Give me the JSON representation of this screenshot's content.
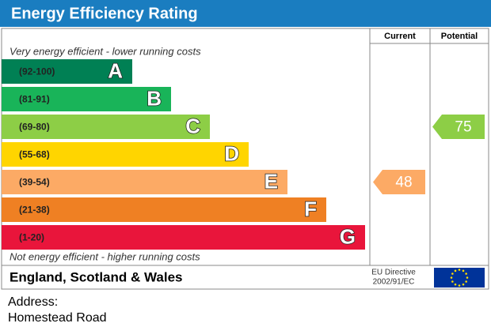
{
  "header": {
    "title": "Energy Efficiency Rating",
    "columns": [
      "Current",
      "Potential"
    ]
  },
  "top_note": "Very energy efficient - lower running costs",
  "bands": [
    {
      "range": "(92-100)",
      "letter": "A",
      "color": "#008054"
    },
    {
      "range": "(81-91)",
      "letter": "B",
      "color": "#19b459"
    },
    {
      "range": "(69-80)",
      "letter": "C",
      "color": "#8dce46"
    },
    {
      "range": "(55-68)",
      "letter": "D",
      "color": "#ffd500"
    },
    {
      "range": "(39-54)",
      "letter": "E",
      "color": "#fcaa65"
    },
    {
      "range": "(21-38)",
      "letter": "F",
      "color": "#ef8023"
    },
    {
      "range": "(1-20)",
      "letter": "G",
      "color": "#e9153b"
    }
  ],
  "bottom_note": "Not energy efficient - higher running costs",
  "ratings": [
    48,
    75
  ],
  "footer": {
    "region": "England, Scotland & Wales",
    "directive": [
      "EU Directive",
      "2002/91/EC"
    ]
  },
  "address": {
    "label": "Address:",
    "line": "Homestead Road"
  }
}
